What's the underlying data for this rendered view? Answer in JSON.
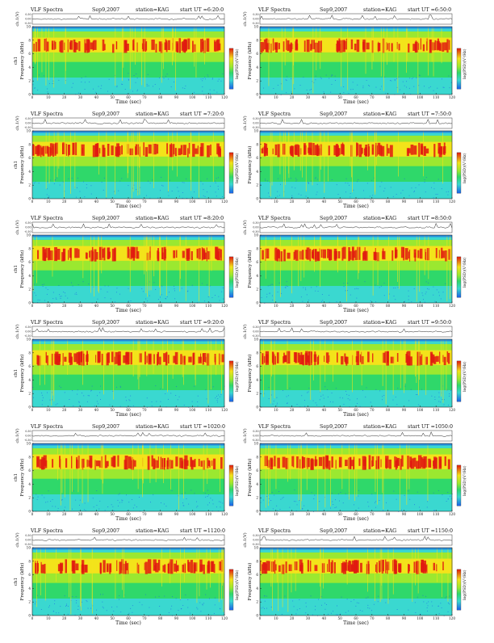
{
  "panel_title": "VLF Spectra",
  "date": "Sep9,2007",
  "station": "station=KAG",
  "start_prefix": "start UT =",
  "waveform_ylabel": "ch.1(V)",
  "waveform_ticks": [
    "0.30",
    "0.00",
    "-0.30"
  ],
  "spec_ylabel_left": "Frequency (kHz)",
  "spec_ylabel_ch": "ch1",
  "spec_ylabel_right": "Frequency (kHz)",
  "spec_yticks": [
    "0",
    "2",
    "4",
    "6",
    "8",
    "10"
  ],
  "xlabel": "Time (sec)",
  "xticks": [
    "0",
    "10",
    "20",
    "30",
    "40",
    "50",
    "60",
    "70",
    "80",
    "90",
    "100",
    "110",
    "120"
  ],
  "colorbar_label": "log(PSD)(V²/Hz)",
  "colors": {
    "band_red": "#e01a10",
    "band_yellow": "#f3e31a",
    "band_lime": "#9be830",
    "band_green": "#2fd86a",
    "band_cyan": "#3ad8d0",
    "band_blue": "#1a5fe8",
    "trace": "#222222"
  },
  "chart_data": [
    {
      "type": "heatmap",
      "start_ut": "6:20:0",
      "xlabel": "Time (sec)",
      "ylabel": "Frequency (kHz)",
      "xlim": [
        0,
        120
      ],
      "ylim": [
        0,
        10
      ]
    },
    {
      "type": "heatmap",
      "start_ut": "6:50:0",
      "xlabel": "Time (sec)",
      "ylabel": "Frequency (kHz)",
      "xlim": [
        0,
        120
      ],
      "ylim": [
        0,
        10
      ]
    },
    {
      "type": "heatmap",
      "start_ut": "7:20:0",
      "xlabel": "Time (sec)",
      "ylabel": "Frequency (kHz)",
      "xlim": [
        0,
        120
      ],
      "ylim": [
        0,
        10
      ]
    },
    {
      "type": "heatmap",
      "start_ut": "7:50:0",
      "xlabel": "Time (sec)",
      "ylabel": "Frequency (kHz)",
      "xlim": [
        0,
        120
      ],
      "ylim": [
        0,
        10
      ]
    },
    {
      "type": "heatmap",
      "start_ut": "8:20:0",
      "xlabel": "Time (sec)",
      "ylabel": "Frequency (kHz)",
      "xlim": [
        0,
        120
      ],
      "ylim": [
        0,
        10
      ]
    },
    {
      "type": "heatmap",
      "start_ut": "8:50:0",
      "xlabel": "Time (sec)",
      "ylabel": "Frequency (kHz)",
      "xlim": [
        0,
        120
      ],
      "ylim": [
        0,
        10
      ]
    },
    {
      "type": "heatmap",
      "start_ut": "9:20:0",
      "xlabel": "Time (sec)",
      "ylabel": "Frequency (kHz)",
      "xlim": [
        0,
        120
      ],
      "ylim": [
        0,
        10
      ]
    },
    {
      "type": "heatmap",
      "start_ut": "9:50:0",
      "xlabel": "Time (sec)",
      "ylabel": "Frequency (kHz)",
      "xlim": [
        0,
        120
      ],
      "ylim": [
        0,
        10
      ]
    },
    {
      "type": "heatmap",
      "start_ut": "1020:0",
      "xlabel": "Time (sec)",
      "ylabel": "Frequency (kHz)",
      "xlim": [
        0,
        120
      ],
      "ylim": [
        0,
        10
      ]
    },
    {
      "type": "heatmap",
      "start_ut": "1050:0",
      "xlabel": "Time (sec)",
      "ylabel": "Frequency (kHz)",
      "xlim": [
        0,
        120
      ],
      "ylim": [
        0,
        10
      ]
    },
    {
      "type": "heatmap",
      "start_ut": "1120:0",
      "xlabel": "Time (sec)",
      "ylabel": "Frequency (kHz)",
      "xlim": [
        0,
        120
      ],
      "ylim": [
        0,
        10
      ]
    },
    {
      "type": "heatmap",
      "start_ut": "1150:0",
      "xlabel": "Time (sec)",
      "ylabel": "Frequency (kHz)",
      "xlim": [
        0,
        120
      ],
      "ylim": [
        0,
        10
      ]
    }
  ]
}
